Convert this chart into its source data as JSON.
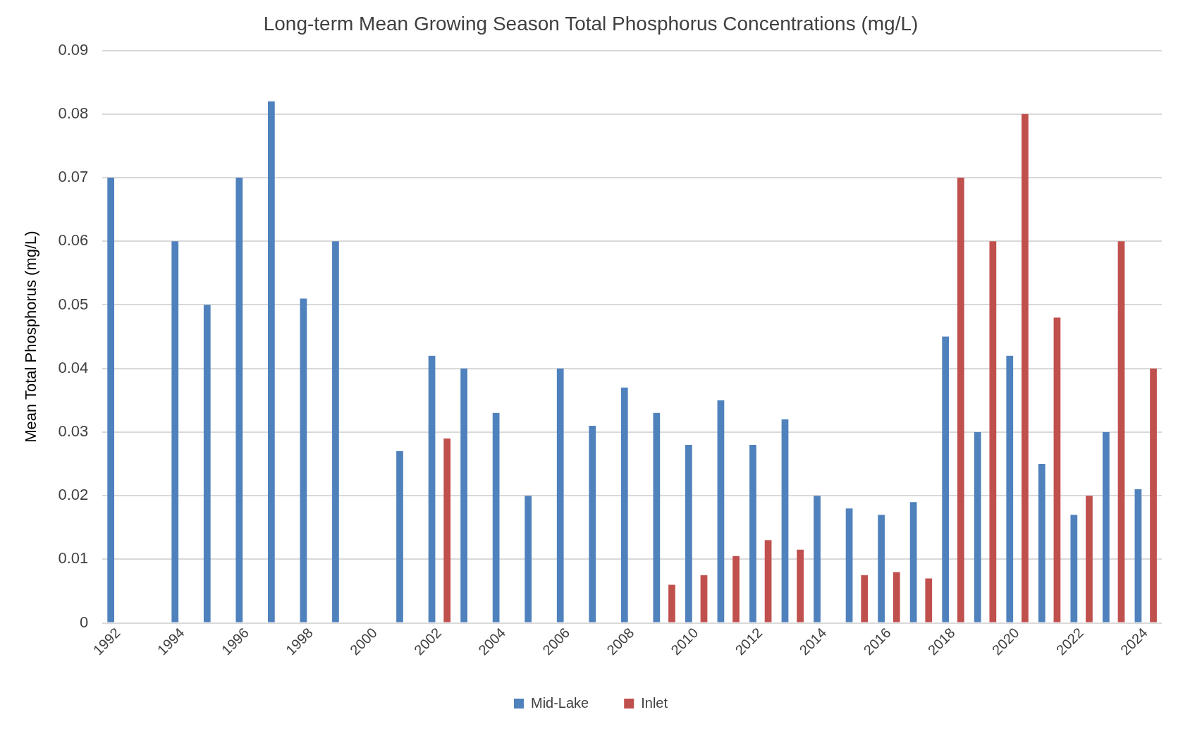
{
  "chart_data": {
    "type": "bar",
    "title": "Long-term Mean Growing Season Total Phosphorus Concentrations (mg/L)",
    "ylabel": "Mean Total Phosphorus (mg/L)",
    "categories": [
      "1992",
      null,
      "1994",
      null,
      "1996",
      null,
      "1998",
      null,
      "2000",
      null,
      "2002",
      null,
      "2004",
      null,
      "2006",
      null,
      "2008",
      null,
      "2010",
      null,
      "2012",
      null,
      "2014",
      null,
      "2016",
      null,
      "2018",
      null,
      "2020",
      null,
      "2022",
      null,
      "2024"
    ],
    "series": [
      {
        "name": "Mid-Lake",
        "color": "#4f81bd",
        "values": [
          0.07,
          null,
          0.06,
          0.05,
          0.07,
          0.082,
          0.051,
          0.06,
          null,
          0.027,
          0.042,
          0.04,
          0.033,
          0.02,
          0.04,
          0.031,
          0.037,
          0.033,
          0.028,
          0.035,
          0.028,
          0.032,
          0.02,
          0.018,
          0.017,
          0.019,
          0.045,
          0.03,
          0.042,
          0.025,
          0.017,
          0.03,
          0.021
        ]
      },
      {
        "name": "Inlet",
        "color": "#c0504d",
        "values": [
          null,
          null,
          null,
          null,
          null,
          null,
          null,
          null,
          null,
          null,
          0.029,
          null,
          null,
          null,
          null,
          null,
          null,
          0.006,
          0.0075,
          0.0105,
          0.013,
          0.0115,
          null,
          0.0075,
          0.008,
          0.007,
          0.07,
          0.06,
          0.08,
          0.048,
          0.02,
          0.06,
          0.04
        ]
      }
    ],
    "ylim": [
      0,
      0.09
    ],
    "yticks": [
      0,
      0.01,
      0.02,
      0.03,
      0.04,
      0.05,
      0.06,
      0.07,
      0.08,
      0.09
    ],
    "grid": "y",
    "legend": "bottom"
  }
}
